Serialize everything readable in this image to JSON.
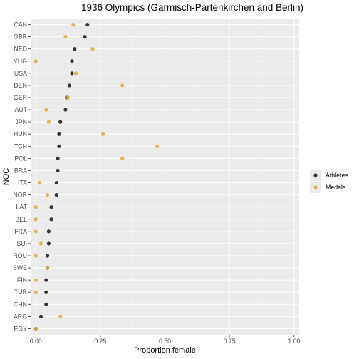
{
  "chart_data": {
    "type": "scatter",
    "title": "1936 Olympics (Garmisch-Partenkirchen and Berlin)",
    "xlabel": "Proportion female",
    "ylabel": "NOC",
    "xlim": [
      -0.02,
      1.02
    ],
    "x_ticks": [
      0,
      0.25,
      0.5,
      0.75,
      1
    ],
    "x_tick_labels": [
      "0.00",
      "0.25",
      "0.50",
      "0.75",
      "1.00"
    ],
    "categories": [
      "CAN",
      "GBR",
      "NED",
      "YUG",
      "USA",
      "DEN",
      "GER",
      "AUT",
      "JPN",
      "HUN",
      "TCH",
      "POL",
      "BRA",
      "ITA",
      "NOR",
      "LAT",
      "BEL",
      "FRA",
      "SUI",
      "ROU",
      "SWE",
      "FIN",
      "TUR",
      "CHN",
      "ARG",
      "EGY"
    ],
    "series": [
      {
        "name": "Athletes",
        "color": "#333333",
        "values": [
          0.2,
          0.19,
          0.15,
          0.14,
          0.14,
          0.13,
          0.12,
          0.115,
          0.095,
          0.09,
          0.09,
          0.085,
          0.085,
          0.08,
          0.08,
          0.06,
          0.06,
          0.05,
          0.05,
          0.045,
          0.045,
          0.04,
          0.04,
          0.04,
          0.02,
          0.0
        ]
      },
      {
        "name": "Medals",
        "color": "#e6a93d",
        "values": [
          0.145,
          0.115,
          0.22,
          0.0,
          0.155,
          0.335,
          0.125,
          0.04,
          0.05,
          0.26,
          0.47,
          0.335,
          null,
          0.015,
          0.045,
          0.0,
          0.0,
          0.0,
          0.02,
          0.0,
          0.045,
          0.0,
          0.0,
          null,
          0.095,
          0.0
        ]
      }
    ],
    "legend_position": "right",
    "grid": true
  }
}
